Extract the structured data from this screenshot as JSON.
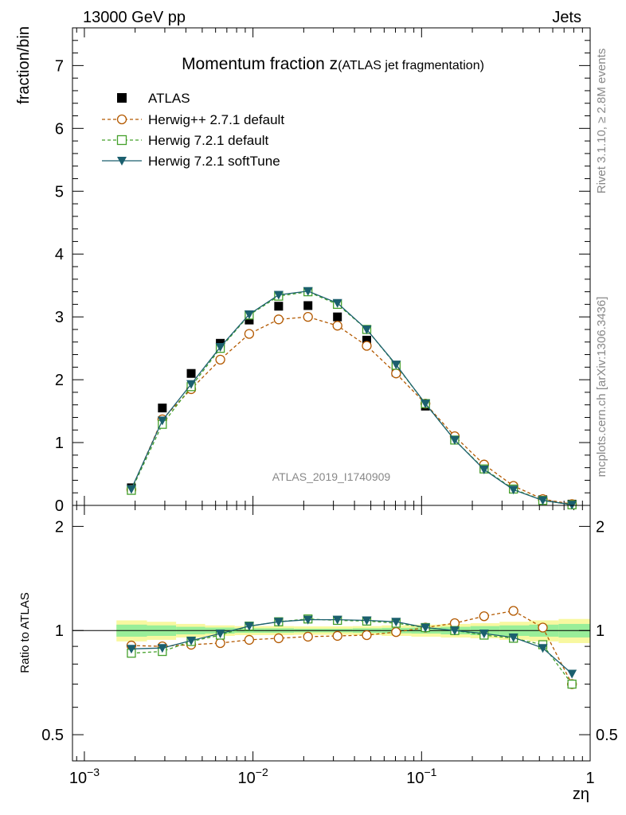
{
  "header": {
    "energy_label": "13000 GeV pp",
    "category_label": "Jets",
    "rivet_label": "Rivet 3.1.10, ≥ 2.8M events",
    "source_label": "mcplots.cern.ch [arXiv:1306.3436]",
    "analysis_id": "ATLAS_2019_I1740909"
  },
  "chart_data": [
    {
      "type": "line",
      "title_main": "Momentum fraction z",
      "title_sub": "(ATLAS jet fragmentation)",
      "ylabel": "fraction/bin",
      "xscale": "log",
      "xlim": [
        0.00085,
        1.0
      ],
      "ylim": [
        0,
        7.6
      ],
      "yticks": [
        "0",
        "1",
        "2",
        "3",
        "4",
        "5",
        "6",
        "7"
      ],
      "legend_position": "top-left",
      "x": [
        0.0019,
        0.0029,
        0.0043,
        0.0064,
        0.0095,
        0.0142,
        0.0212,
        0.0317,
        0.0473,
        0.0706,
        0.1054,
        0.1573,
        0.2349,
        0.3507,
        0.5236,
        0.78
      ],
      "series": [
        {
          "name": "ATLAS",
          "color": "#000000",
          "marker": "filled-square",
          "values": [
            0.28,
            1.55,
            2.1,
            2.58,
            2.95,
            3.17,
            3.18,
            3.0,
            2.63,
            2.12,
            1.58,
            1.04,
            0.59,
            0.27,
            0.09,
            0.02
          ]
        },
        {
          "name": "Herwig++ 2.7.1 default",
          "color": "#b35900",
          "marker": "open-circle",
          "dash": "dashed",
          "values": [
            0.25,
            1.37,
            1.85,
            2.32,
            2.73,
            2.96,
            3.0,
            2.86,
            2.54,
            2.1,
            1.62,
            1.1,
            0.65,
            0.31,
            0.1,
            0.02
          ]
        },
        {
          "name": "Herwig 7.2.1 default",
          "color": "#44a02a",
          "marker": "open-square",
          "dash": "dashed",
          "values": [
            0.24,
            1.29,
            1.89,
            2.5,
            3.03,
            3.33,
            3.4,
            3.2,
            2.8,
            2.23,
            1.62,
            1.04,
            0.58,
            0.26,
            0.08,
            0.01
          ]
        },
        {
          "name": "Herwig 7.2.1 softTune",
          "color": "#1b5f6e",
          "marker": "filled-triangle-down",
          "dash": "solid",
          "values": [
            0.26,
            1.35,
            1.93,
            2.52,
            3.04,
            3.35,
            3.41,
            3.22,
            2.8,
            2.24,
            1.62,
            1.04,
            0.57,
            0.25,
            0.08,
            0.01
          ]
        }
      ]
    },
    {
      "type": "line",
      "ylabel": "Ratio to ATLAS",
      "xlabel": "zη",
      "xscale": "log",
      "xlim": [
        0.00085,
        1.0
      ],
      "ylim": [
        0.42,
        2.3
      ],
      "yticks": [
        "0.5",
        "1",
        "2"
      ],
      "xticks": [
        "10",
        "10",
        "10",
        "1"
      ],
      "xtick_exponents": [
        "−3",
        "−2",
        "−1",
        ""
      ],
      "bands": {
        "outer_color": "#f8f8a0",
        "inner_color": "#99ee99",
        "bin_edges": [
          0.00155,
          0.00235,
          0.0035,
          0.0052,
          0.0078,
          0.0117,
          0.0175,
          0.026,
          0.039,
          0.058,
          0.087,
          0.13,
          0.195,
          0.29,
          0.435,
          0.65,
          1.0
        ],
        "outer": [
          0.07,
          0.06,
          0.045,
          0.035,
          0.03,
          0.03,
          0.028,
          0.028,
          0.03,
          0.035,
          0.04,
          0.045,
          0.05,
          0.06,
          0.07,
          0.08
        ],
        "inner": [
          0.04,
          0.035,
          0.025,
          0.02,
          0.015,
          0.015,
          0.012,
          0.012,
          0.015,
          0.018,
          0.02,
          0.025,
          0.03,
          0.035,
          0.04,
          0.045
        ]
      },
      "series": [
        {
          "name": "Herwig++ 2.7.1 default",
          "values": [
            0.905,
            0.9,
            0.91,
            0.92,
            0.94,
            0.95,
            0.96,
            0.965,
            0.97,
            0.99,
            1.02,
            1.05,
            1.1,
            1.14,
            1.02,
            0.7
          ]
        },
        {
          "name": "Herwig 7.2.1 default",
          "values": [
            0.86,
            0.87,
            0.93,
            0.97,
            1.03,
            1.06,
            1.08,
            1.07,
            1.065,
            1.05,
            1.02,
            1.0,
            0.97,
            0.95,
            0.91,
            0.7
          ]
        },
        {
          "name": "Herwig 7.2.1 softTune",
          "values": [
            0.885,
            0.89,
            0.935,
            0.98,
            1.03,
            1.06,
            1.075,
            1.075,
            1.07,
            1.06,
            1.02,
            1.0,
            0.98,
            0.955,
            0.89,
            0.75
          ]
        }
      ]
    }
  ]
}
